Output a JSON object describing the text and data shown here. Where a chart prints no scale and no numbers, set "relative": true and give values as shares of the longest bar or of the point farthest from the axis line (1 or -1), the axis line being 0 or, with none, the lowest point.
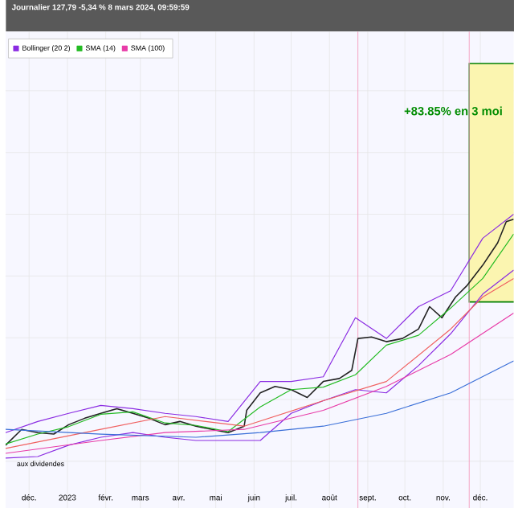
{
  "chart_data": {
    "type": "line",
    "relative": true,
    "title": "Journalier 127,79 -5,34 % 8 mars 2024, 09:59:59",
    "annotations": [
      "+83.85% en 3 moi",
      "aux dividendes"
    ],
    "xlim": [
      "2022-11-12",
      "2023-12-28"
    ],
    "xticks": [
      {
        "value": "2022-12-01",
        "label": "déc."
      },
      {
        "value": "2023-01-01",
        "label": "2023"
      },
      {
        "value": "2023-02-01",
        "label": "févr."
      },
      {
        "value": "2023-03-01",
        "label": "mars"
      },
      {
        "value": "2023-04-01",
        "label": "avr."
      },
      {
        "value": "2023-05-01",
        "label": "mai"
      },
      {
        "value": "2023-06-01",
        "label": "juin"
      },
      {
        "value": "2023-07-01",
        "label": "juil."
      },
      {
        "value": "2023-08-01",
        "label": "août"
      },
      {
        "value": "2023-09-01",
        "label": "sept."
      },
      {
        "value": "2023-10-01",
        "label": "oct."
      },
      {
        "value": "2023-11-01",
        "label": "nov."
      },
      {
        "value": "2023-12-01",
        "label": "déc."
      }
    ],
    "grid": true,
    "legend": "top left",
    "ref_lines": [
      {
        "axis": "x",
        "value": "2023-08-24",
        "color": "#f4a0c0"
      },
      {
        "axis": "x",
        "value": "2023-11-22",
        "color": "#f4a0c0"
      }
    ],
    "bands": [
      {
        "axis": "x",
        "from": "2023-11-22",
        "to": "2023-12-28",
        "color": "#fbf5b0"
      }
    ],
    "series": [
      {
        "color": "#222222",
        "x": [
          "2022-11-12",
          "2022-11-25",
          "2022-12-08",
          "2022-12-21",
          "2023-01-02",
          "2023-01-15",
          "2023-01-28",
          "2023-02-10",
          "2023-02-23",
          "2023-03-08",
          "2023-03-21",
          "2023-04-02",
          "2023-04-15",
          "2023-04-28",
          "2023-05-11",
          "2023-05-24",
          "2023-05-26",
          "2023-06-06",
          "2023-06-18",
          "2023-07-01",
          "2023-07-14",
          "2023-07-27",
          "2023-08-09",
          "2023-08-19",
          "2023-08-24",
          "2023-09-04",
          "2023-09-16",
          "2023-09-29",
          "2023-10-12",
          "2023-10-21",
          "2023-10-31",
          "2023-11-11",
          "2023-11-20",
          "2023-12-03",
          "2023-12-09",
          "2023-12-15",
          "2023-12-22",
          "2023-12-28"
        ],
        "values": [
          0.065,
          0.129,
          0.116,
          0.11,
          0.148,
          0.174,
          0.194,
          0.213,
          0.194,
          0.174,
          0.148,
          0.161,
          0.142,
          0.129,
          0.116,
          0.142,
          0.206,
          0.277,
          0.303,
          0.29,
          0.258,
          0.323,
          0.335,
          0.368,
          0.497,
          0.503,
          0.484,
          0.497,
          0.535,
          0.626,
          0.581,
          0.665,
          0.71,
          0.794,
          0.839,
          0.884,
          0.97,
          0.98
        ]
      },
      {
        "name": "Bollinger (20 2)",
        "color": "#8a2be2",
        "x": [
          "2022-11-12",
          "2022-12-08",
          "2023-01-02",
          "2023-01-28",
          "2023-02-23",
          "2023-03-21",
          "2023-04-15",
          "2023-05-11",
          "2023-06-06",
          "2023-07-01",
          "2023-07-27",
          "2023-08-22",
          "2023-09-16",
          "2023-10-12",
          "2023-11-07",
          "2023-12-03",
          "2023-12-28"
        ],
        "values": [
          0.116,
          0.161,
          0.194,
          0.226,
          0.213,
          0.194,
          0.181,
          0.161,
          0.323,
          0.323,
          0.342,
          0.581,
          0.497,
          0.626,
          0.69,
          0.903,
          1.0
        ]
      },
      {
        "color": "#8a2be2",
        "x": [
          "2022-11-12",
          "2022-12-08",
          "2023-01-02",
          "2023-01-28",
          "2023-02-23",
          "2023-03-21",
          "2023-04-15",
          "2023-05-11",
          "2023-06-06",
          "2023-07-01",
          "2023-07-27",
          "2023-08-22",
          "2023-09-16",
          "2023-10-12",
          "2023-11-07",
          "2023-12-03",
          "2023-12-28"
        ],
        "values": [
          0.013,
          0.019,
          0.065,
          0.097,
          0.116,
          0.097,
          0.084,
          0.084,
          0.084,
          0.194,
          0.245,
          0.29,
          0.277,
          0.387,
          0.516,
          0.677,
          0.774
        ]
      },
      {
        "name": "SMA (14)",
        "color": "#22bb22",
        "x": [
          "2022-11-12",
          "2022-12-08",
          "2023-01-02",
          "2023-01-28",
          "2023-02-23",
          "2023-03-21",
          "2023-04-15",
          "2023-05-11",
          "2023-06-06",
          "2023-07-01",
          "2023-07-27",
          "2023-08-22",
          "2023-09-16",
          "2023-10-12",
          "2023-11-07",
          "2023-12-03",
          "2023-12-28"
        ],
        "values": [
          0.07,
          0.11,
          0.14,
          0.19,
          0.2,
          0.155,
          0.145,
          0.12,
          0.22,
          0.29,
          0.3,
          0.35,
          0.47,
          0.51,
          0.62,
          0.74,
          0.92
        ]
      },
      {
        "name": "SMA (100)",
        "color": "#e83ca8",
        "x": [
          "2022-11-12",
          "2023-01-28",
          "2023-03-21",
          "2023-05-24",
          "2023-07-27",
          "2023-09-16",
          "2023-11-07",
          "2023-12-28"
        ],
        "values": [
          0.032,
          0.084,
          0.116,
          0.129,
          0.206,
          0.303,
          0.432,
          0.6
        ]
      },
      {
        "color": "#f06060",
        "x": [
          "2022-11-12",
          "2023-01-28",
          "2023-03-21",
          "2023-05-24",
          "2023-07-27",
          "2023-09-16",
          "2023-11-07",
          "2023-12-03",
          "2023-12-28"
        ],
        "values": [
          0.052,
          0.129,
          0.181,
          0.142,
          0.245,
          0.323,
          0.535,
          0.665,
          0.74
        ]
      },
      {
        "color": "#3a6fd8",
        "x": [
          "2022-11-12",
          "2023-01-28",
          "2023-04-15",
          "2023-06-06",
          "2023-07-27",
          "2023-09-16",
          "2023-11-07",
          "2023-12-28"
        ],
        "values": [
          0.129,
          0.11,
          0.097,
          0.116,
          0.142,
          0.194,
          0.277,
          0.406
        ]
      }
    ]
  }
}
